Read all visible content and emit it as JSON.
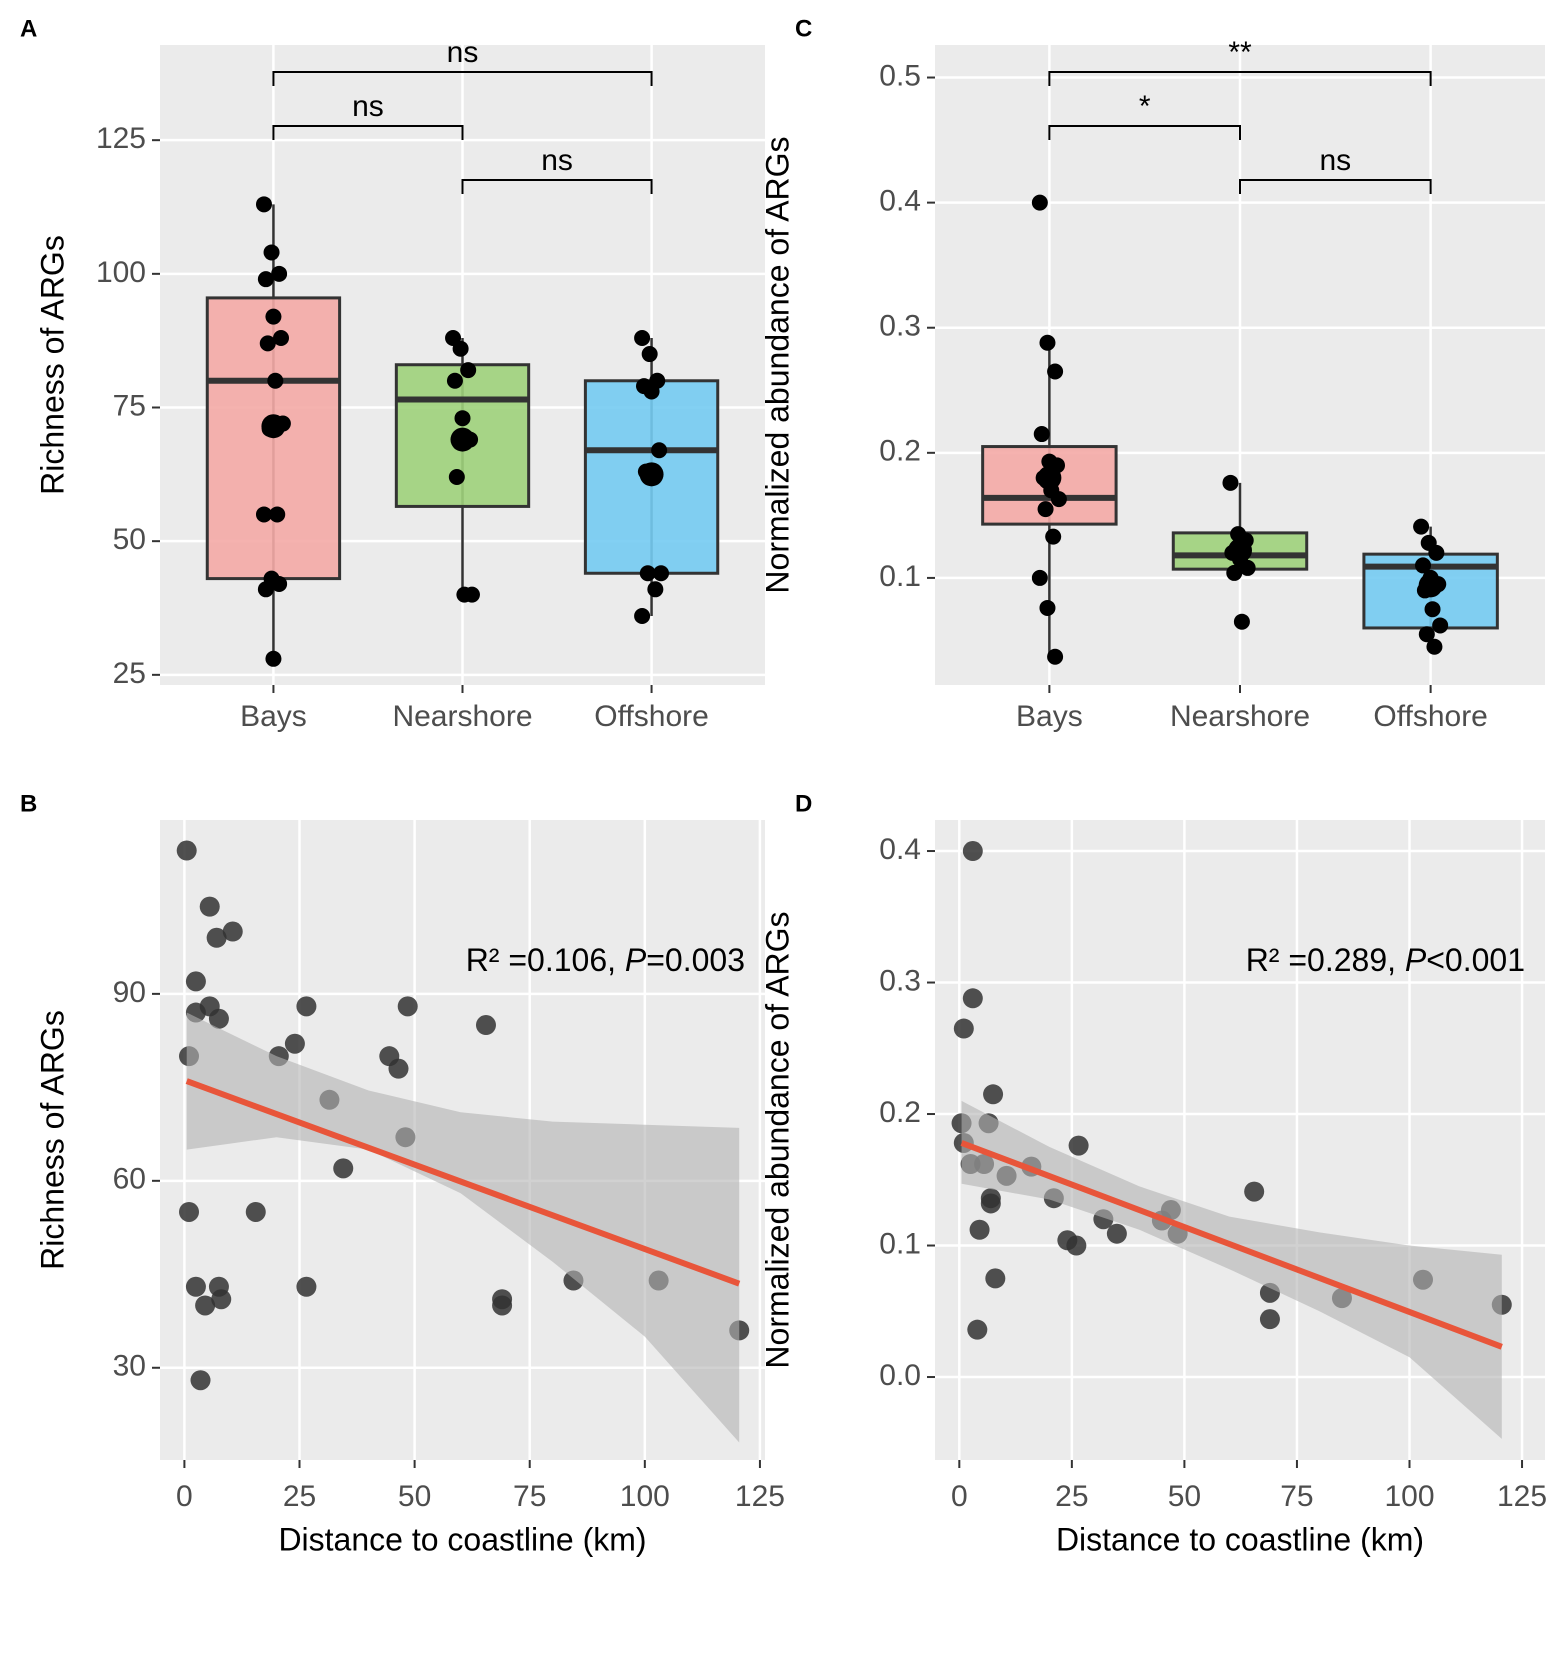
{
  "chart_data": [
    {
      "type": "box",
      "panel": "A",
      "ylabel": "Richness of ARGs",
      "categories": [
        "Bays",
        "Nearshore",
        "Offshore"
      ],
      "colors": [
        "#f4aaa6",
        "#9fd27b",
        "#74cbf2"
      ],
      "ylim": [
        23.1,
        142.8
      ],
      "yticks": [
        25,
        50,
        75,
        100,
        125
      ],
      "grid": true,
      "boxes": [
        {
          "low": 28,
          "q1": 43,
          "median": 80,
          "q3": 95.5,
          "high": 113,
          "mean": 71.5,
          "points": [
            113,
            104,
            100,
            99,
            92,
            88,
            87,
            80,
            72,
            71,
            55,
            55,
            43,
            42,
            41,
            28
          ]
        },
        {
          "low": 40,
          "q1": 56.5,
          "median": 76.5,
          "q3": 83,
          "high": 88,
          "mean": 69,
          "points": [
            88,
            86,
            82,
            80,
            73,
            69,
            62,
            40,
            40
          ]
        },
        {
          "low": 36,
          "q1": 44,
          "median": 67,
          "q3": 80,
          "high": 88,
          "mean": 62.5,
          "points": [
            88,
            85,
            80,
            79,
            78,
            67,
            63,
            62,
            44,
            44,
            41,
            36
          ]
        }
      ],
      "comparisons": [
        {
          "label": "ns",
          "pair": [
            0,
            2
          ]
        },
        {
          "label": "ns",
          "pair": [
            0,
            1
          ]
        },
        {
          "label": "ns",
          "pair": [
            1,
            2
          ]
        }
      ]
    },
    {
      "type": "scatter",
      "panel": "B",
      "ylabel": "Richness of ARGs",
      "xlabel": "Distance to coastline (km)",
      "xlim": [
        -5.3,
        126.1
      ],
      "xticks": [
        0,
        25,
        50,
        75,
        100,
        125
      ],
      "ylim": [
        15.2,
        117.9
      ],
      "yticks": [
        30,
        60,
        90
      ],
      "grid": true,
      "color": "#333333",
      "fit_color": "#e8553a",
      "band_color": "#b3b3b3",
      "x": [
        0.5,
        5.5,
        7,
        10.5,
        2.5,
        2.5,
        5.5,
        7.5,
        1,
        20.5,
        24,
        26.5,
        31.5,
        34.5,
        44.5,
        46.5,
        48.5,
        48,
        65.5,
        1,
        15.5,
        2.5,
        7.5,
        26.5,
        4.5,
        8,
        3.5,
        69,
        69,
        84.5,
        103,
        120.5
      ],
      "y": [
        113,
        104,
        99,
        100,
        92,
        87,
        88,
        86,
        80,
        80,
        82,
        88,
        73,
        62,
        80,
        78,
        88,
        67,
        85,
        55,
        55,
        43,
        43,
        43,
        40,
        41,
        28,
        41,
        40,
        44,
        44,
        36
      ],
      "fit": {
        "x": [
          0.5,
          120.5
        ],
        "y": [
          76,
          43.5
        ]
      },
      "band": {
        "x": [
          0.5,
          20,
          40,
          60,
          80,
          100,
          120.5
        ],
        "upper": [
          87,
          80,
          74.5,
          71,
          69.5,
          69,
          68.5
        ],
        "lower": [
          65,
          67,
          65,
          58,
          47,
          35,
          18
        ]
      },
      "annotation": [
        {
          "text": "R² =0.106, "
        },
        {
          "text": "P",
          "italic": true
        },
        {
          "text": "=0.003"
        }
      ]
    },
    {
      "type": "box",
      "panel": "C",
      "ylabel": "Normalized abundance of ARGs",
      "categories": [
        "Bays",
        "Nearshore",
        "Offshore"
      ],
      "colors": [
        "#f4aaa6",
        "#9fd27b",
        "#74cbf2"
      ],
      "ylim": [
        0.0144,
        0.526
      ],
      "yticks": [
        0.1,
        0.2,
        0.3,
        0.4,
        0.5
      ],
      "grid": true,
      "boxes": [
        {
          "low": 0.037,
          "q1": 0.143,
          "median": 0.164,
          "q3": 0.205,
          "high": 0.288,
          "mean": 0.18,
          "points": [
            0.4,
            0.288,
            0.265,
            0.215,
            0.193,
            0.19,
            0.18,
            0.17,
            0.163,
            0.155,
            0.133,
            0.1,
            0.076,
            0.037
          ]
        },
        {
          "low": 0.103,
          "q1": 0.107,
          "median": 0.118,
          "q3": 0.136,
          "high": 0.176,
          "mean": 0.122,
          "points": [
            0.176,
            0.135,
            0.13,
            0.12,
            0.115,
            0.108,
            0.104,
            0.065
          ]
        },
        {
          "low": 0.045,
          "q1": 0.06,
          "median": 0.109,
          "q3": 0.119,
          "high": 0.141,
          "mean": 0.094,
          "points": [
            0.141,
            0.128,
            0.12,
            0.11,
            0.1,
            0.095,
            0.09,
            0.075,
            0.062,
            0.055,
            0.045
          ]
        }
      ],
      "comparisons": [
        {
          "label": "**",
          "pair": [
            0,
            2
          ]
        },
        {
          "label": "*",
          "pair": [
            0,
            1
          ]
        },
        {
          "label": "ns",
          "pair": [
            1,
            2
          ]
        }
      ]
    },
    {
      "type": "scatter",
      "panel": "D",
      "ylabel": "Normalized abundance of ARGs",
      "xlabel": "Distance to coastline (km)",
      "xlim": [
        -5.4,
        130.1
      ],
      "xticks": [
        0,
        25,
        50,
        75,
        100,
        125
      ],
      "ylim": [
        -0.0631,
        0.4236
      ],
      "yticks": [
        {
          "value": 0,
          "label": "0.0"
        },
        0.1,
        0.2,
        0.3,
        0.4
      ],
      "grid": true,
      "color": "#333333",
      "fit_color": "#e8553a",
      "band_color": "#b3b3b3",
      "x": [
        3,
        1,
        3,
        0.5,
        1,
        2.5,
        5.5,
        6.5,
        7.5,
        7,
        7,
        10.5,
        16,
        21,
        24,
        26,
        26.5,
        4.5,
        8,
        4,
        32,
        35,
        45,
        47,
        48.5,
        65.5,
        69,
        69,
        85,
        103,
        120.5
      ],
      "y": [
        0.4,
        0.265,
        0.288,
        0.193,
        0.178,
        0.162,
        0.162,
        0.193,
        0.215,
        0.136,
        0.132,
        0.153,
        0.16,
        0.136,
        0.104,
        0.1,
        0.176,
        0.112,
        0.075,
        0.036,
        0.12,
        0.109,
        0.119,
        0.127,
        0.109,
        0.141,
        0.064,
        0.044,
        0.06,
        0.074,
        0.055
      ],
      "fit": {
        "x": [
          0.5,
          120.5
        ],
        "y": [
          0.178,
          0.023
        ]
      },
      "band": {
        "x": [
          0.5,
          20,
          40,
          60,
          80,
          100,
          120.5
        ],
        "upper": [
          0.21,
          0.175,
          0.145,
          0.122,
          0.11,
          0.1,
          0.093
        ],
        "lower": [
          0.147,
          0.135,
          0.112,
          0.082,
          0.05,
          0.015,
          -0.047
        ]
      },
      "annotation": [
        {
          "text": "R² =0.289, "
        },
        {
          "text": "P",
          "italic": true
        },
        {
          "text": "<0.001"
        }
      ]
    }
  ]
}
